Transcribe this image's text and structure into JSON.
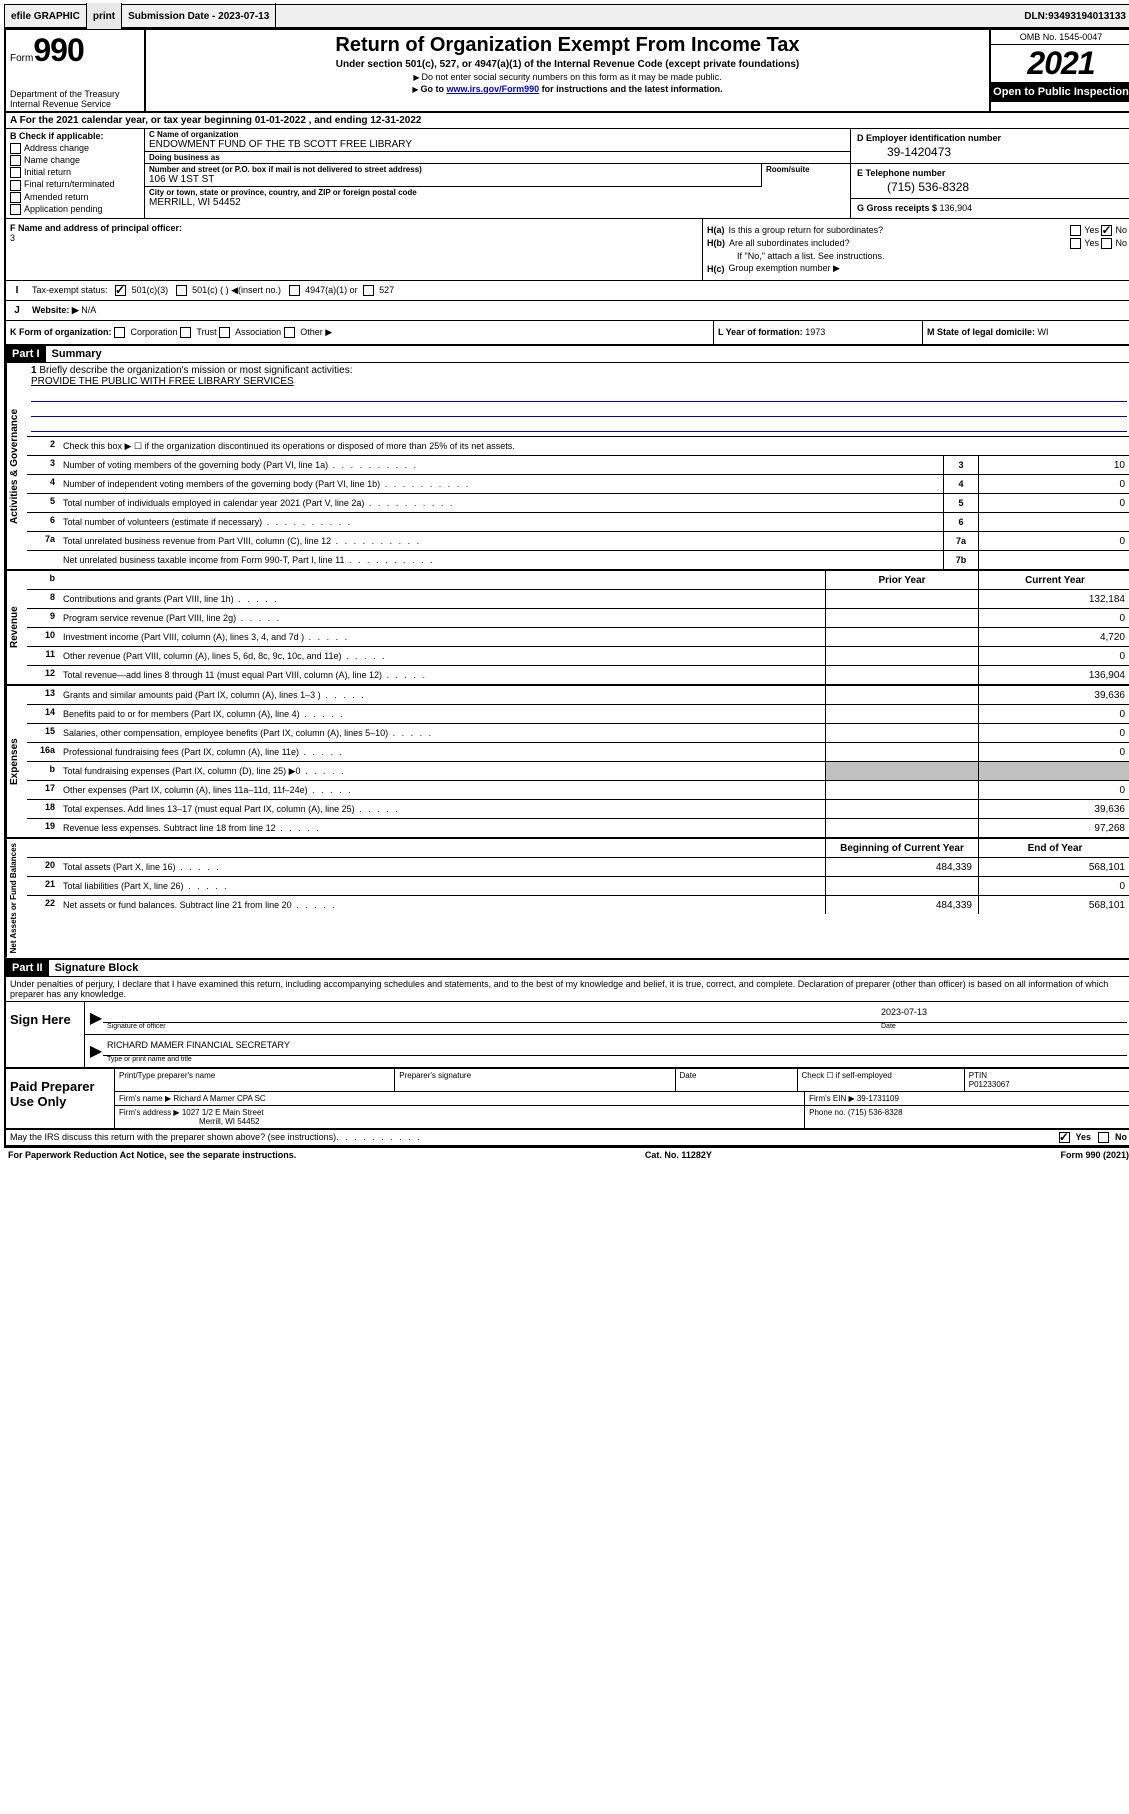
{
  "topbar": {
    "efile": "efile GRAPHIC",
    "print": "print",
    "sub_label": "Submission Date - ",
    "sub_date": "2023-07-13",
    "dln_label": "DLN: ",
    "dln": "93493194013133"
  },
  "header": {
    "form_word": "Form",
    "form_num": "990",
    "dept": "Department of the Treasury Internal Revenue Service",
    "title": "Return of Organization Exempt From Income Tax",
    "subtitle": "Under section 501(c), 527, or 4947(a)(1) of the Internal Revenue Code (except private foundations)",
    "note1": "Do not enter social security numbers on this form as it may be made public.",
    "note2_pre": "Go to ",
    "note2_link": "www.irs.gov/Form990",
    "note2_post": " for instructions and the latest information.",
    "omb": "OMB No. 1545-0047",
    "year": "2021",
    "inspection": "Open to Public Inspection"
  },
  "row_a": "A For the 2021 calendar year, or tax year beginning 01-01-2022   , and ending 12-31-2022",
  "col_b": {
    "header": "B Check if applicable:",
    "items": [
      "Address change",
      "Name change",
      "Initial return",
      "Final return/terminated",
      "Amended return",
      "Application pending"
    ]
  },
  "col_c": {
    "name_label": "C Name of organization",
    "name": "ENDOWMENT FUND OF THE TB SCOTT FREE LIBRARY",
    "dba_label": "Doing business as",
    "dba": "",
    "addr_label": "Number and street (or P.O. box if mail is not delivered to street address)",
    "room_label": "Room/suite",
    "addr": "106 W 1ST ST",
    "city_label": "City or town, state or province, country, and ZIP or foreign postal code",
    "city": "MERRILL, WI  54452"
  },
  "col_de": {
    "d_label": "D Employer identification number",
    "d_val": "39-1420473",
    "e_label": "E Telephone number",
    "e_val": "(715) 536-8328",
    "g_label": "G Gross receipts $ ",
    "g_val": "136,904"
  },
  "col_f": {
    "label": "F  Name and address of principal officer:",
    "val": "3"
  },
  "col_h": {
    "ha_label": "H(a)",
    "ha_text": "Is this a group return for subordinates?",
    "ha_yes": "Yes",
    "ha_no_checked": "No",
    "hb_label": "H(b)",
    "hb_text": "Are all subordinates included?",
    "hb_yes": "Yes",
    "hb_no": "No",
    "hb_note": "If \"No,\" attach a list. See instructions.",
    "hc_label": "H(c)",
    "hc_text": "Group exemption number ▶"
  },
  "row_i": {
    "label": "Tax-exempt status:",
    "opt1": "501(c)(3)",
    "opt2": "501(c) (  ) ◀(insert no.)",
    "opt3": "4947(a)(1) or",
    "opt4": "527"
  },
  "row_j": {
    "label": "Website: ▶",
    "val": "N/A"
  },
  "row_k": {
    "label": "K Form of organization:",
    "opts": [
      "Corporation",
      "Trust",
      "Association",
      "Other ▶"
    ]
  },
  "row_l": {
    "label": "L Year of formation: ",
    "val": "1973"
  },
  "row_m": {
    "label": "M State of legal domicile: ",
    "val": "WI"
  },
  "part1": {
    "header": "Part I",
    "title": "Summary",
    "q1_label": "1",
    "q1": "Briefly describe the organization's mission or most significant activities:",
    "q1_val": "PROVIDE THE PUBLIC WITH FREE LIBRARY SERVICES",
    "q2_label": "2",
    "q2": "Check this box ▶ ☐  if the organization discontinued its operations or disposed of more than 25% of its net assets.",
    "sections": {
      "governance": {
        "label": "Activities & Governance",
        "rows": [
          {
            "n": "3",
            "d": "Number of voting members of the governing body (Part VI, line 1a)",
            "box": "3",
            "v": "10"
          },
          {
            "n": "4",
            "d": "Number of independent voting members of the governing body (Part VI, line 1b)",
            "box": "4",
            "v": "0"
          },
          {
            "n": "5",
            "d": "Total number of individuals employed in calendar year 2021 (Part V, line 2a)",
            "box": "5",
            "v": "0"
          },
          {
            "n": "6",
            "d": "Total number of volunteers (estimate if necessary)",
            "box": "6",
            "v": ""
          },
          {
            "n": "7a",
            "d": "Total unrelated business revenue from Part VIII, column (C), line 12",
            "box": "7a",
            "v": "0"
          },
          {
            "n": "",
            "d": "Net unrelated business taxable income from Form 990-T, Part I, line 11",
            "box": "7b",
            "v": ""
          }
        ]
      },
      "col_headers": {
        "n": "b",
        "prior": "Prior Year",
        "current": "Current Year"
      },
      "revenue": {
        "label": "Revenue",
        "rows": [
          {
            "n": "8",
            "d": "Contributions and grants (Part VIII, line 1h)",
            "p": "",
            "c": "132,184"
          },
          {
            "n": "9",
            "d": "Program service revenue (Part VIII, line 2g)",
            "p": "",
            "c": "0"
          },
          {
            "n": "10",
            "d": "Investment income (Part VIII, column (A), lines 3, 4, and 7d )",
            "p": "",
            "c": "4,720"
          },
          {
            "n": "11",
            "d": "Other revenue (Part VIII, column (A), lines 5, 6d, 8c, 9c, 10c, and 11e)",
            "p": "",
            "c": "0"
          },
          {
            "n": "12",
            "d": "Total revenue—add lines 8 through 11 (must equal Part VIII, column (A), line 12)",
            "p": "",
            "c": "136,904"
          }
        ]
      },
      "expenses": {
        "label": "Expenses",
        "rows": [
          {
            "n": "13",
            "d": "Grants and similar amounts paid (Part IX, column (A), lines 1–3 )",
            "p": "",
            "c": "39,636"
          },
          {
            "n": "14",
            "d": "Benefits paid to or for members (Part IX, column (A), line 4)",
            "p": "",
            "c": "0"
          },
          {
            "n": "15",
            "d": "Salaries, other compensation, employee benefits (Part IX, column (A), lines 5–10)",
            "p": "",
            "c": "0"
          },
          {
            "n": "16a",
            "d": "Professional fundraising fees (Part IX, column (A), line 11e)",
            "p": "",
            "c": "0"
          },
          {
            "n": "b",
            "d": "Total fundraising expenses (Part IX, column (D), line 25) ▶0",
            "p": "shaded",
            "c": "shaded"
          },
          {
            "n": "17",
            "d": "Other expenses (Part IX, column (A), lines 11a–11d, 11f–24e)",
            "p": "",
            "c": "0"
          },
          {
            "n": "18",
            "d": "Total expenses. Add lines 13–17 (must equal Part IX, column (A), line 25)",
            "p": "",
            "c": "39,636"
          },
          {
            "n": "19",
            "d": "Revenue less expenses. Subtract line 18 from line 12",
            "p": "",
            "c": "97,268"
          }
        ]
      },
      "balance_headers": {
        "begin": "Beginning of Current Year",
        "end": "End of Year"
      },
      "balances": {
        "label": "Net Assets or Fund Balances",
        "rows": [
          {
            "n": "20",
            "d": "Total assets (Part X, line 16)",
            "p": "484,339",
            "c": "568,101"
          },
          {
            "n": "21",
            "d": "Total liabilities (Part X, line 26)",
            "p": "",
            "c": "0"
          },
          {
            "n": "22",
            "d": "Net assets or fund balances. Subtract line 21 from line 20",
            "p": "484,339",
            "c": "568,101"
          }
        ]
      }
    }
  },
  "part2": {
    "header": "Part II",
    "title": "Signature Block",
    "declaration": "Under penalties of perjury, I declare that I have examined this return, including accompanying schedules and statements, and to the best of my knowledge and belief, it is true, correct, and complete. Declaration of preparer (other than officer) is based on all information of which preparer has any knowledge.",
    "sign_here": "Sign Here",
    "sig_officer": "Signature of officer",
    "sig_date": "Date",
    "sig_date_val": "2023-07-13",
    "sig_name": "RICHARD MAMER  FINANCIAL SECRETARY",
    "sig_name_label": "Type or print name and title",
    "paid": "Paid Preparer Use Only",
    "prep_name_label": "Print/Type preparer's name",
    "prep_sig_label": "Preparer's signature",
    "prep_date_label": "Date",
    "prep_check": "Check ☐ if self-employed",
    "ptin_label": "PTIN",
    "ptin": "P01233067",
    "firm_name_label": "Firm's name    ▶",
    "firm_name": "Richard A Mamer CPA SC",
    "firm_ein_label": "Firm's EIN ▶",
    "firm_ein": "39-1731109",
    "firm_addr_label": "Firm's address ▶",
    "firm_addr1": "1027 1/2 E Main Street",
    "firm_addr2": "Merrill, WI  54452",
    "phone_label": "Phone no. ",
    "phone": "(715) 536-8328",
    "discuss": "May the IRS discuss this return with the preparer shown above? (see instructions)",
    "discuss_yes": "Yes",
    "discuss_no": "No"
  },
  "footer": {
    "left": "For Paperwork Reduction Act Notice, see the separate instructions.",
    "mid": "Cat. No. 11282Y",
    "right": "Form 990 (2021)"
  }
}
